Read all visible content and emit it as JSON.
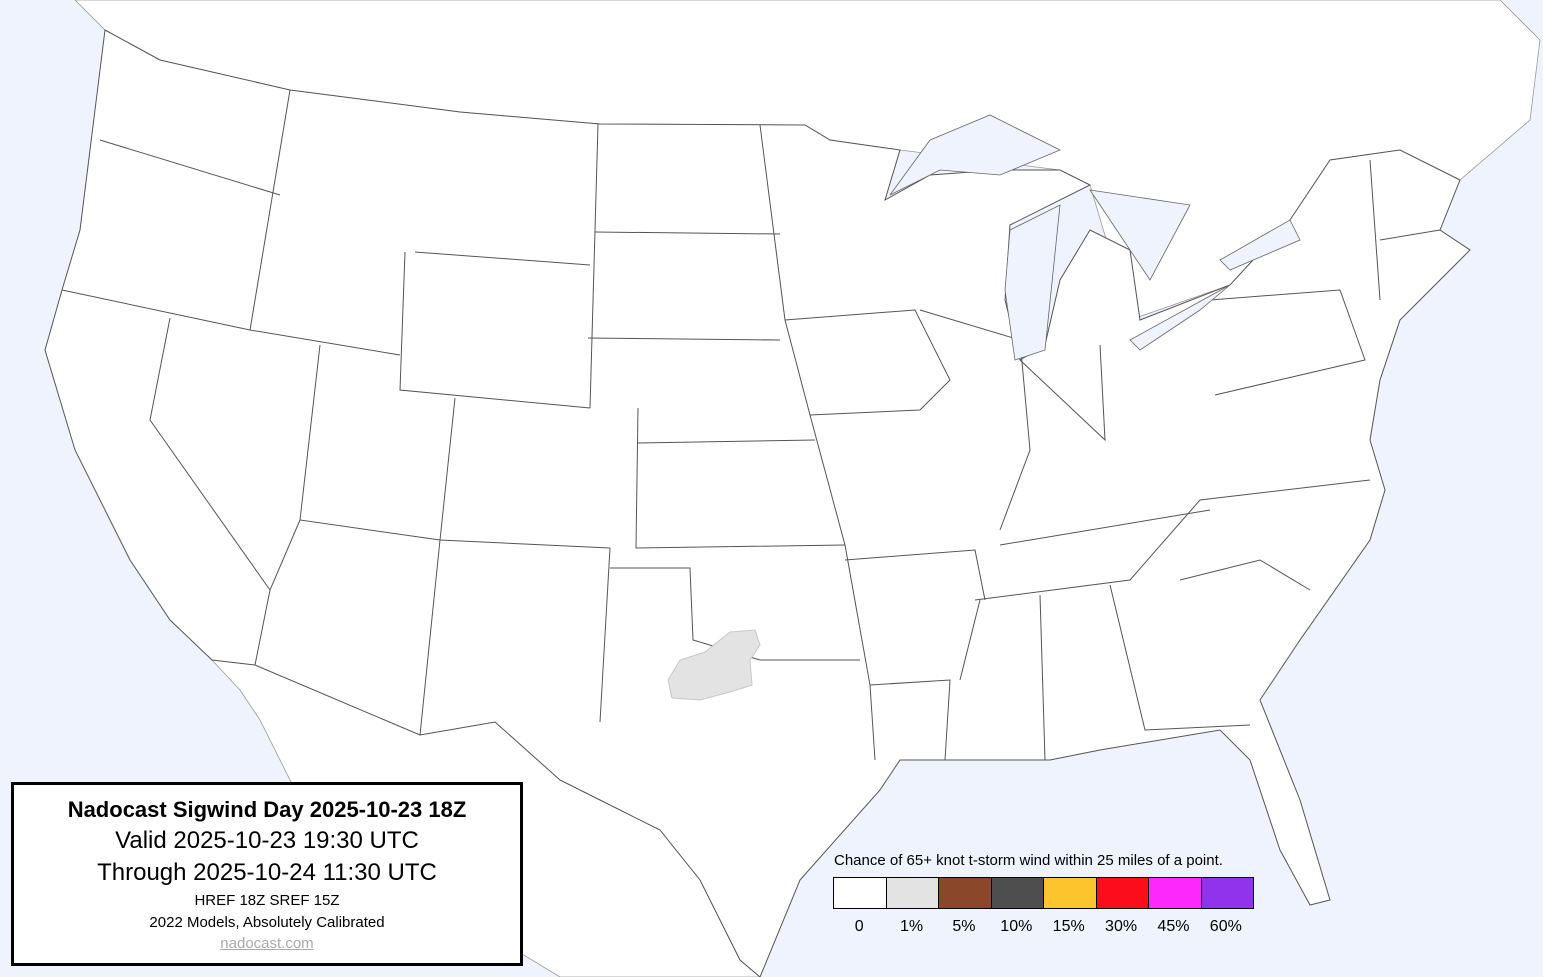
{
  "info": {
    "title": "Nadocast Sigwind Day 2025-10-23 18Z",
    "valid": "Valid 2025-10-23 19:30 UTC",
    "through": "Through 2025-10-24 11:30 UTC",
    "models": "HREF 18Z SREF 15Z",
    "calibration": "2022 Models, Absolutely Calibrated",
    "link": "nadocast.com"
  },
  "legend": {
    "title": "Chance of 65+ knot t-storm wind within 25 miles of a point.",
    "bins": [
      {
        "label": "0",
        "color": "#ffffff"
      },
      {
        "label": "1%",
        "color": "#e3e3e3"
      },
      {
        "label": "5%",
        "color": "#8b4729"
      },
      {
        "label": "10%",
        "color": "#4e4e4e"
      },
      {
        "label": "15%",
        "color": "#fdc52d"
      },
      {
        "label": "30%",
        "color": "#fc0d1b"
      },
      {
        "label": "45%",
        "color": "#fc28fc"
      },
      {
        "label": "60%",
        "color": "#9133ea"
      }
    ]
  },
  "map": {
    "water_color": "#eef3fe",
    "land_color": "#ffffff",
    "border_color": "#555555",
    "forecast_areas": [
      {
        "category": "1%",
        "region": "Texas-Oklahoma border"
      }
    ]
  }
}
